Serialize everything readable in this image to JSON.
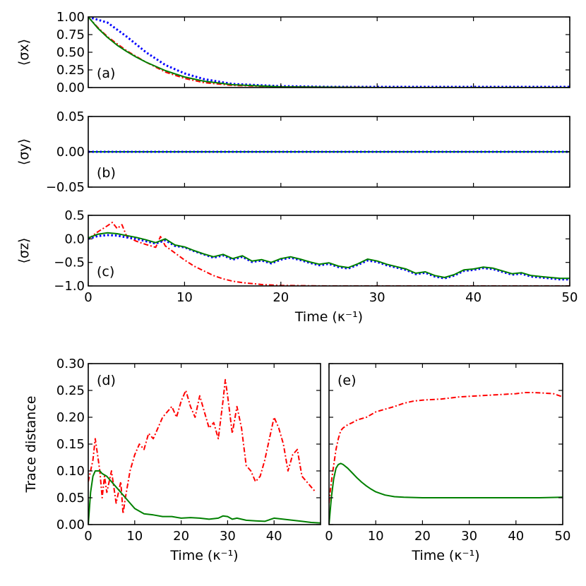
{
  "figure": {
    "time_unit_label": "Time (κ⁻¹)"
  },
  "chart_data": [
    {
      "id": "a",
      "type": "line",
      "panel_label": "(a)",
      "ylabel": "⟨σx⟩",
      "xlim": [
        0,
        50
      ],
      "ylim": [
        0,
        1
      ],
      "x_ticks": [
        0,
        10,
        20,
        30,
        40,
        50
      ],
      "y_ticks": [
        "0.00",
        "0.25",
        "0.50",
        "0.75",
        "1.00"
      ],
      "y_tick_values": [
        0,
        0.25,
        0.5,
        0.75,
        1.0
      ],
      "show_xtick_labels": false,
      "series": [
        {
          "name": "blue-dotted",
          "color": "#0000ff",
          "style": "dotted",
          "x": [
            0,
            2,
            4,
            6,
            8,
            10,
            12,
            15,
            20,
            25,
            30,
            40,
            50
          ],
          "y": [
            1.0,
            0.92,
            0.72,
            0.5,
            0.32,
            0.2,
            0.12,
            0.05,
            0.02,
            0.01,
            0.01,
            0.01,
            0.01
          ]
        },
        {
          "name": "red-dashdot",
          "color": "#ff0000",
          "style": "dashdot",
          "x": [
            0,
            1,
            2,
            3,
            4,
            5,
            6,
            8,
            10,
            12,
            15,
            20,
            30,
            50
          ],
          "y": [
            1.0,
            0.85,
            0.72,
            0.62,
            0.52,
            0.44,
            0.36,
            0.22,
            0.13,
            0.07,
            0.03,
            0.01,
            0.0,
            0.0
          ]
        },
        {
          "name": "green-solid",
          "color": "#008000",
          "style": "solid",
          "x": [
            0,
            1,
            2,
            3,
            4,
            5,
            6,
            8,
            10,
            12,
            15,
            20,
            30,
            50
          ],
          "y": [
            1.0,
            0.84,
            0.71,
            0.6,
            0.51,
            0.43,
            0.36,
            0.24,
            0.15,
            0.09,
            0.04,
            0.01,
            0.0,
            0.0
          ]
        }
      ]
    },
    {
      "id": "b",
      "type": "line",
      "panel_label": "(b)",
      "ylabel": "⟨σy⟩",
      "xlim": [
        0,
        50
      ],
      "ylim": [
        -0.05,
        0.05
      ],
      "x_ticks": [
        0,
        10,
        20,
        30,
        40,
        50
      ],
      "y_ticks": [
        "−0.05",
        "0.00",
        "0.05"
      ],
      "y_tick_values": [
        -0.05,
        0,
        0.05
      ],
      "show_xtick_labels": false,
      "series": [
        {
          "name": "red-dashdot",
          "color": "#ff0000",
          "style": "dashdot",
          "x": [
            0,
            50
          ],
          "y": [
            0,
            0
          ]
        },
        {
          "name": "green-solid",
          "color": "#008000",
          "style": "solid",
          "x": [
            0,
            50
          ],
          "y": [
            0,
            0
          ]
        },
        {
          "name": "blue-dotted",
          "color": "#0000ff",
          "style": "dotted",
          "x": [
            0,
            50
          ],
          "y": [
            0,
            0
          ]
        }
      ]
    },
    {
      "id": "c",
      "type": "line",
      "panel_label": "(c)",
      "ylabel": "⟨σz⟩",
      "xlabel": "Time (κ⁻¹)",
      "xlim": [
        0,
        50
      ],
      "ylim": [
        -1,
        0.5
      ],
      "x_ticks": [
        0,
        10,
        20,
        30,
        40,
        50
      ],
      "y_ticks": [
        "−1.0",
        "−0.5",
        "0.0",
        "0.5"
      ],
      "y_tick_values": [
        -1.0,
        -0.5,
        0,
        0.5
      ],
      "show_xtick_labels": true,
      "series": [
        {
          "name": "red-dashdot",
          "color": "#ff0000",
          "style": "dashdot",
          "x": [
            0,
            1,
            2,
            2.5,
            3,
            3.5,
            4,
            5,
            6,
            7,
            7.5,
            8,
            9,
            10,
            11,
            12,
            13,
            14,
            15,
            16,
            18,
            20,
            25,
            30,
            50
          ],
          "y": [
            0.0,
            0.15,
            0.28,
            0.35,
            0.22,
            0.3,
            0.05,
            -0.05,
            -0.12,
            -0.18,
            0.05,
            -0.15,
            -0.3,
            -0.45,
            -0.58,
            -0.68,
            -0.78,
            -0.85,
            -0.9,
            -0.93,
            -0.97,
            -0.99,
            -1.0,
            -1.0,
            -1.0
          ]
        },
        {
          "name": "blue-dotted",
          "color": "#0000ff",
          "style": "dotted",
          "x": [
            0,
            1,
            2,
            3,
            4,
            5,
            6,
            7,
            8,
            9,
            10,
            11,
            12,
            13,
            14,
            15,
            16,
            17,
            18,
            19,
            20,
            21,
            22,
            23,
            24,
            25,
            26,
            27,
            28,
            29,
            30,
            31,
            32,
            33,
            34,
            35,
            36,
            37,
            38,
            39,
            40,
            41,
            42,
            43,
            44,
            45,
            46,
            47,
            48,
            49,
            50
          ],
          "y": [
            0.0,
            0.06,
            0.08,
            0.07,
            0.03,
            0.0,
            -0.05,
            -0.1,
            -0.03,
            -0.15,
            -0.18,
            -0.26,
            -0.33,
            -0.4,
            -0.35,
            -0.44,
            -0.38,
            -0.49,
            -0.46,
            -0.52,
            -0.44,
            -0.4,
            -0.45,
            -0.51,
            -0.56,
            -0.53,
            -0.6,
            -0.63,
            -0.55,
            -0.46,
            -0.49,
            -0.56,
            -0.61,
            -0.66,
            -0.75,
            -0.72,
            -0.8,
            -0.84,
            -0.78,
            -0.68,
            -0.66,
            -0.62,
            -0.64,
            -0.7,
            -0.76,
            -0.74,
            -0.8,
            -0.82,
            -0.84,
            -0.86,
            -0.86
          ]
        },
        {
          "name": "green-solid",
          "color": "#008000",
          "style": "solid",
          "x": [
            0,
            1,
            2,
            3,
            4,
            5,
            6,
            7,
            8,
            9,
            10,
            11,
            12,
            13,
            14,
            15,
            16,
            17,
            18,
            19,
            20,
            21,
            22,
            23,
            24,
            25,
            26,
            27,
            28,
            29,
            30,
            31,
            32,
            33,
            34,
            35,
            36,
            37,
            38,
            39,
            40,
            41,
            42,
            43,
            44,
            45,
            46,
            47,
            48,
            49,
            50
          ],
          "y": [
            0.02,
            0.1,
            0.13,
            0.11,
            0.07,
            0.03,
            -0.02,
            -0.08,
            0.0,
            -0.13,
            -0.17,
            -0.25,
            -0.32,
            -0.38,
            -0.33,
            -0.42,
            -0.36,
            -0.47,
            -0.44,
            -0.5,
            -0.42,
            -0.38,
            -0.43,
            -0.49,
            -0.54,
            -0.51,
            -0.58,
            -0.61,
            -0.53,
            -0.43,
            -0.47,
            -0.54,
            -0.59,
            -0.64,
            -0.73,
            -0.7,
            -0.78,
            -0.82,
            -0.76,
            -0.66,
            -0.64,
            -0.6,
            -0.62,
            -0.68,
            -0.74,
            -0.72,
            -0.78,
            -0.8,
            -0.82,
            -0.84,
            -0.84
          ]
        }
      ]
    },
    {
      "id": "d",
      "type": "line",
      "panel_label": "(d)",
      "ylabel": "Trace distance",
      "xlabel": "Time (κ⁻¹)",
      "xlim": [
        0,
        50
      ],
      "ylim": [
        0,
        0.3
      ],
      "x_ticks": [
        0,
        10,
        20,
        30,
        40
      ],
      "y_ticks": [
        "0.00",
        "0.05",
        "0.10",
        "0.15",
        "0.20",
        "0.25",
        "0.30"
      ],
      "y_tick_values": [
        0,
        0.05,
        0.1,
        0.15,
        0.2,
        0.25,
        0.3
      ],
      "show_xtick_labels": true,
      "series": [
        {
          "name": "red-dashdot",
          "color": "#ff0000",
          "style": "dashdot",
          "x": [
            0,
            1,
            1.5,
            2,
            2.5,
            3,
            3.5,
            4,
            5,
            6,
            7,
            7.5,
            8,
            9,
            10,
            11,
            12,
            13,
            14,
            15,
            16,
            17,
            18,
            19,
            20,
            21,
            22,
            23,
            24,
            25,
            26,
            27,
            28,
            29,
            29.5,
            30,
            31,
            32,
            33,
            34,
            35,
            36,
            37,
            38,
            39,
            40,
            41,
            42,
            43,
            44,
            45,
            46,
            47,
            48,
            49
          ],
          "y": [
            0.08,
            0.12,
            0.16,
            0.13,
            0.1,
            0.05,
            0.09,
            0.06,
            0.1,
            0.04,
            0.08,
            0.02,
            0.05,
            0.1,
            0.13,
            0.15,
            0.14,
            0.17,
            0.16,
            0.18,
            0.2,
            0.21,
            0.22,
            0.2,
            0.23,
            0.25,
            0.22,
            0.2,
            0.24,
            0.21,
            0.18,
            0.19,
            0.16,
            0.23,
            0.27,
            0.24,
            0.17,
            0.22,
            0.18,
            0.11,
            0.1,
            0.08,
            0.09,
            0.12,
            0.16,
            0.2,
            0.18,
            0.15,
            0.1,
            0.13,
            0.14,
            0.09,
            0.08,
            0.07,
            0.06
          ]
        },
        {
          "name": "green-solid",
          "color": "#008000",
          "style": "solid",
          "x": [
            0,
            0.5,
            1,
            1.5,
            2,
            2.5,
            3,
            4,
            5,
            6,
            7,
            8,
            9,
            10,
            12,
            14,
            16,
            18,
            20,
            22,
            24,
            26,
            28,
            29,
            30,
            31,
            32,
            34,
            36,
            38,
            40,
            42,
            44,
            46,
            48,
            50
          ],
          "y": [
            0.0,
            0.06,
            0.09,
            0.1,
            0.1,
            0.1,
            0.095,
            0.09,
            0.08,
            0.07,
            0.06,
            0.05,
            0.04,
            0.03,
            0.02,
            0.018,
            0.015,
            0.015,
            0.012,
            0.013,
            0.012,
            0.01,
            0.012,
            0.016,
            0.015,
            0.01,
            0.012,
            0.008,
            0.007,
            0.006,
            0.012,
            0.01,
            0.008,
            0.006,
            0.004,
            0.003
          ]
        }
      ]
    },
    {
      "id": "e",
      "type": "line",
      "panel_label": "(e)",
      "xlabel": "Time (κ⁻¹)",
      "xlim": [
        0,
        50
      ],
      "ylim": [
        0,
        0.3
      ],
      "x_ticks": [
        0,
        10,
        20,
        30,
        40,
        50
      ],
      "y_ticks": [],
      "y_tick_values": [
        0,
        0.05,
        0.1,
        0.15,
        0.2,
        0.25,
        0.3
      ],
      "show_xtick_labels": true,
      "series": [
        {
          "name": "red-dashdot",
          "color": "#ff0000",
          "style": "dashdot",
          "x": [
            0,
            0.5,
            1,
            1.5,
            2,
            2.5,
            3,
            4,
            5,
            6,
            8,
            10,
            12,
            14,
            16,
            18,
            20,
            24,
            28,
            32,
            36,
            40,
            42,
            44,
            46,
            48,
            50
          ],
          "y": [
            0.04,
            0.08,
            0.11,
            0.14,
            0.16,
            0.175,
            0.18,
            0.186,
            0.19,
            0.195,
            0.2,
            0.21,
            0.215,
            0.22,
            0.226,
            0.23,
            0.232,
            0.234,
            0.238,
            0.24,
            0.242,
            0.244,
            0.246,
            0.246,
            0.245,
            0.244,
            0.238
          ]
        },
        {
          "name": "green-solid",
          "color": "#008000",
          "style": "solid",
          "x": [
            0,
            0.5,
            1,
            1.5,
            2,
            2.5,
            3,
            4,
            5,
            6,
            7,
            8,
            9,
            10,
            11,
            12,
            14,
            16,
            20,
            25,
            30,
            35,
            40,
            45,
            50
          ],
          "y": [
            0.0,
            0.05,
            0.085,
            0.105,
            0.112,
            0.114,
            0.112,
            0.105,
            0.096,
            0.087,
            0.079,
            0.072,
            0.066,
            0.061,
            0.058,
            0.055,
            0.052,
            0.051,
            0.05,
            0.05,
            0.05,
            0.05,
            0.05,
            0.05,
            0.051
          ]
        }
      ]
    }
  ]
}
